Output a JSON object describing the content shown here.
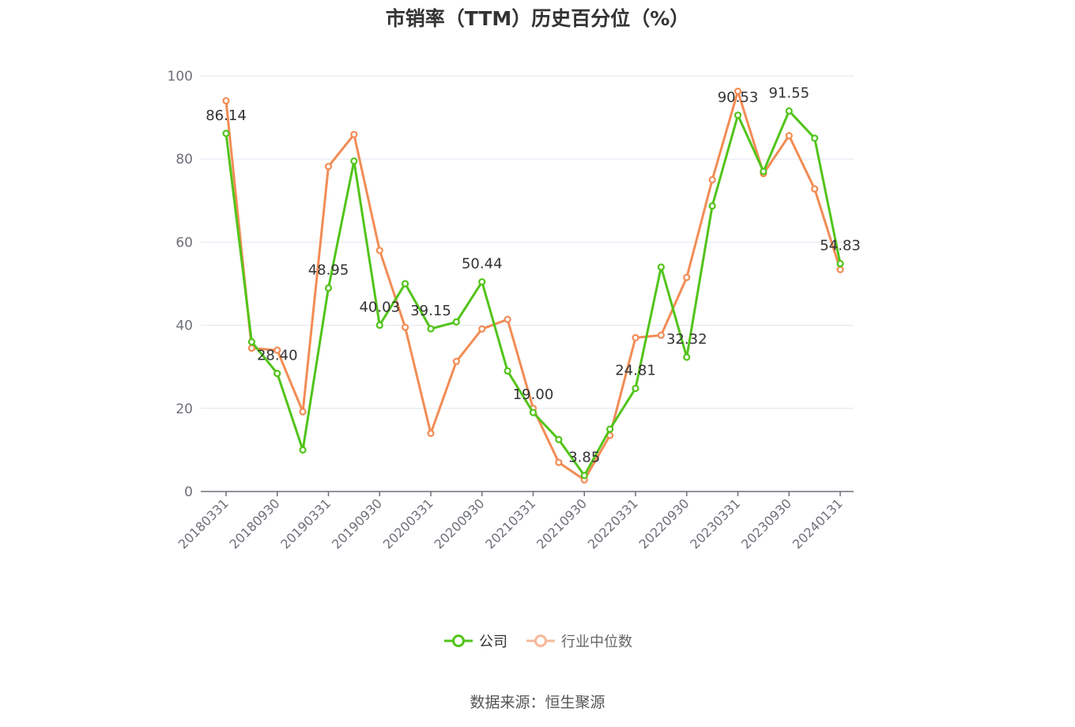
{
  "chart_data": {
    "type": "line",
    "title": "市销率（TTM）历史百分位（%）",
    "source": "数据来源：恒生聚源",
    "ylim": [
      0,
      100
    ],
    "yticks": [
      0,
      20,
      40,
      60,
      80,
      100
    ],
    "grid": true,
    "legend_position": "bottom",
    "x": [
      "20180331",
      "20180630",
      "20180930",
      "20181231",
      "20190331",
      "20190630",
      "20190930",
      "20191231",
      "20200331",
      "20200630",
      "20200930",
      "20201231",
      "20210331",
      "20210630",
      "20210930",
      "20211231",
      "20220331",
      "20220630",
      "20220930",
      "20221231",
      "20230331",
      "20230630",
      "20230930",
      "20231231",
      "20240131"
    ],
    "xtick_labels": [
      "20180331",
      "20180930",
      "20190331",
      "20190930",
      "20200331",
      "20200930",
      "20210331",
      "20210930",
      "20220331",
      "20220930",
      "20230331",
      "20230930",
      "20240131"
    ],
    "series": [
      {
        "name": "公司",
        "color": "#52c41a",
        "values": [
          86.14,
          36.0,
          28.4,
          10.0,
          48.95,
          79.5,
          40.03,
          50.0,
          39.15,
          40.8,
          50.44,
          29.0,
          19.0,
          12.5,
          3.85,
          15.0,
          24.81,
          54.0,
          32.32,
          68.7,
          90.53,
          77.0,
          91.55,
          85.0,
          54.83
        ],
        "labels": [
          "86.14",
          "",
          "28.40",
          "",
          "48.95",
          "",
          "40.03",
          "",
          "39.15",
          "",
          "50.44",
          "",
          "19.00",
          "",
          "3.85",
          "",
          "24.81",
          "",
          "32.32",
          "",
          "90.53",
          "",
          "91.55",
          "",
          "54.83"
        ]
      },
      {
        "name": "行业中位数",
        "color": "#f28c55",
        "values": [
          94.0,
          34.5,
          34.0,
          19.2,
          78.2,
          85.9,
          58.0,
          39.5,
          14.0,
          31.3,
          39.1,
          41.4,
          20.0,
          7.0,
          2.8,
          13.5,
          37.0,
          37.6,
          51.5,
          75.0,
          96.3,
          76.5,
          85.6,
          72.8,
          53.4
        ]
      }
    ]
  }
}
